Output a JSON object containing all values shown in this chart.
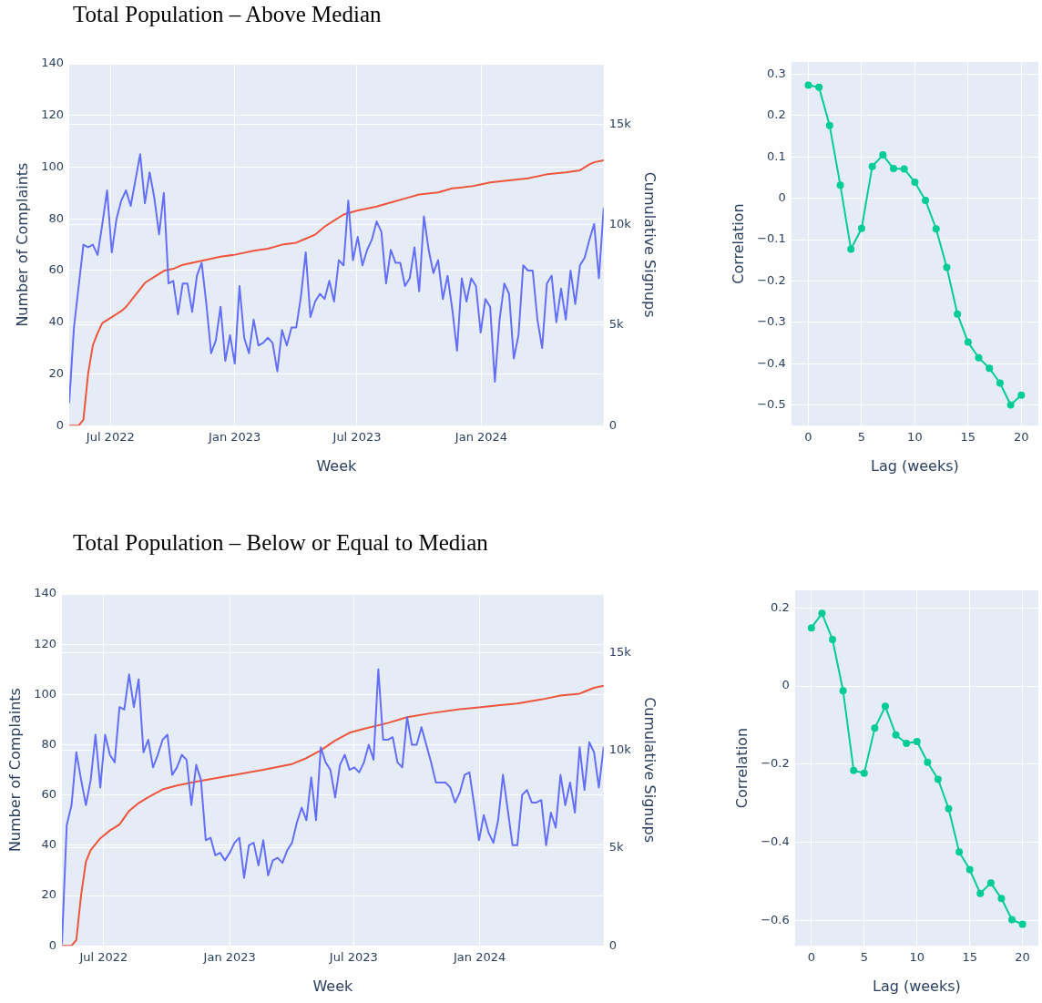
{
  "chart_data": [
    {
      "type": "line",
      "title": "Total Population – Above Median",
      "xlabel": "Week",
      "ylabel": "Number of Complaints",
      "y2label": "Cumulative Signups",
      "grid": true,
      "x": [
        "2022-05-01",
        "2022-05-08",
        "2022-05-15",
        "2022-05-22",
        "2022-05-29",
        "2022-06-05",
        "2022-06-12",
        "2022-06-19",
        "2022-06-26",
        "2022-07-03",
        "2022-07-10",
        "2022-07-17",
        "2022-07-24",
        "2022-07-31",
        "2022-08-07",
        "2022-08-14",
        "2022-08-21",
        "2022-08-28",
        "2022-09-04",
        "2022-09-11",
        "2022-09-18",
        "2022-09-25",
        "2022-10-02",
        "2022-10-09",
        "2022-10-16",
        "2022-10-23",
        "2022-10-30",
        "2022-11-06",
        "2022-11-13",
        "2022-11-20",
        "2022-11-27",
        "2022-12-04",
        "2022-12-11",
        "2022-12-18",
        "2022-12-25",
        "2023-01-01",
        "2023-01-08",
        "2023-01-15",
        "2023-01-22",
        "2023-01-29",
        "2023-02-05",
        "2023-02-12",
        "2023-02-19",
        "2023-02-26",
        "2023-03-05",
        "2023-03-12",
        "2023-03-19",
        "2023-03-26",
        "2023-04-02",
        "2023-04-09",
        "2023-04-16",
        "2023-04-23",
        "2023-04-30",
        "2023-05-07",
        "2023-05-14",
        "2023-05-21",
        "2023-05-28",
        "2023-06-04",
        "2023-06-11",
        "2023-06-18",
        "2023-06-25",
        "2023-07-02",
        "2023-07-09",
        "2023-07-16",
        "2023-07-23",
        "2023-07-30",
        "2023-08-06",
        "2023-08-13",
        "2023-08-20",
        "2023-08-27",
        "2023-09-03",
        "2023-09-10",
        "2023-09-17",
        "2023-09-24",
        "2023-10-01",
        "2023-10-08",
        "2023-10-15",
        "2023-10-22",
        "2023-10-29",
        "2023-11-05",
        "2023-11-12",
        "2023-11-19",
        "2023-11-26",
        "2023-12-03",
        "2023-12-10",
        "2023-12-17",
        "2023-12-24",
        "2023-12-31",
        "2024-01-07",
        "2024-01-14",
        "2024-01-21",
        "2024-01-28",
        "2024-02-04",
        "2024-02-11",
        "2024-02-18",
        "2024-02-25",
        "2024-03-03",
        "2024-03-10",
        "2024-03-17",
        "2024-03-24",
        "2024-03-31",
        "2024-04-07",
        "2024-04-14",
        "2024-04-21",
        "2024-04-28",
        "2024-05-05",
        "2024-05-12",
        "2024-05-19",
        "2024-05-26",
        "2024-06-02",
        "2024-06-09",
        "2024-06-16",
        "2024-06-23",
        "2024-06-30"
      ],
      "xlim": [
        "2022-05-01",
        "2024-06-30"
      ],
      "xticks": [
        {
          "value": "2022-07-01",
          "label": "Jul 2022"
        },
        {
          "value": "2023-01-01",
          "label": "Jan 2023"
        },
        {
          "value": "2023-07-01",
          "label": "Jul 2023"
        },
        {
          "value": "2024-01-01",
          "label": "Jan 2024"
        }
      ],
      "ylim": [
        0,
        140
      ],
      "yticks": [
        0,
        20,
        40,
        60,
        80,
        100,
        120,
        140
      ],
      "y2lim": [
        0,
        18000
      ],
      "y2ticks": [
        0,
        {
          "value": 5000,
          "label": "5k"
        },
        {
          "value": 10000,
          "label": "10k"
        },
        {
          "value": 15000,
          "label": "15k"
        }
      ],
      "series": [
        {
          "color": "#636efa",
          "values": [
            9,
            38,
            54,
            70,
            69,
            70,
            66,
            78,
            91,
            67,
            80,
            87,
            91,
            85,
            95,
            105,
            86,
            98,
            88,
            74,
            90,
            55,
            56,
            43,
            55,
            55,
            44,
            58,
            63,
            47,
            28,
            33,
            46,
            25,
            35,
            24,
            54,
            34,
            28,
            41,
            31,
            32,
            34,
            32,
            21,
            37,
            31,
            38,
            38,
            50,
            67,
            42,
            48,
            51,
            49,
            56,
            48,
            64,
            62,
            87,
            64,
            73,
            62,
            68,
            72,
            79,
            75,
            55,
            68,
            63,
            63,
            54,
            57,
            69,
            52,
            81,
            68,
            59,
            64,
            49,
            58,
            45,
            29,
            57,
            48,
            57,
            54,
            36,
            49,
            46,
            17,
            41,
            55,
            51,
            26,
            35,
            62,
            60,
            60,
            41,
            30,
            55,
            58,
            40,
            53,
            41,
            60,
            47,
            62,
            65,
            72,
            78,
            57,
            84
          ]
        },
        {
          "color": "#ef553b",
          "axis": "y2",
          "x": [
            "2022-05-01",
            "2022-05-15",
            "2022-05-22",
            "2022-05-29",
            "2022-06-05",
            "2022-06-12",
            "2022-06-19",
            "2022-07-03",
            "2022-07-17",
            "2022-07-24",
            "2022-08-07",
            "2022-08-21",
            "2022-09-04",
            "2022-09-18",
            "2022-10-02",
            "2022-10-16",
            "2022-11-13",
            "2022-12-11",
            "2023-01-01",
            "2023-01-29",
            "2023-02-19",
            "2023-03-12",
            "2023-04-02",
            "2023-04-16",
            "2023-04-30",
            "2023-05-14",
            "2023-05-28",
            "2023-06-11",
            "2023-07-02",
            "2023-07-30",
            "2023-08-20",
            "2023-09-10",
            "2023-10-01",
            "2023-10-29",
            "2023-11-19",
            "2023-12-17",
            "2023-12-31",
            "2024-01-14",
            "2024-02-11",
            "2024-03-10",
            "2024-04-07",
            "2024-05-05",
            "2024-05-26",
            "2024-06-09",
            "2024-06-16",
            "2024-06-30"
          ],
          "values": [
            0,
            0,
            300,
            2600,
            4000,
            4600,
            5100,
            5400,
            5700,
            5900,
            6500,
            7100,
            7400,
            7700,
            7800,
            8000,
            8200,
            8400,
            8500,
            8700,
            8800,
            9000,
            9100,
            9300,
            9500,
            9900,
            10200,
            10500,
            10700,
            10900,
            11100,
            11300,
            11500,
            11600,
            11800,
            11900,
            12000,
            12100,
            12200,
            12300,
            12500,
            12600,
            12700,
            13000,
            13100,
            13200
          ]
        }
      ]
    },
    {
      "type": "line",
      "xlabel": "Lag (weeks)",
      "ylabel": "Correlation",
      "grid": true,
      "marker": "circle",
      "x": [
        0,
        1,
        2,
        3,
        4,
        5,
        6,
        7,
        8,
        9,
        10,
        11,
        12,
        13,
        14,
        15,
        16,
        17,
        18,
        19,
        20
      ],
      "xlim": [
        -1.6,
        21.6
      ],
      "xticks": [
        0,
        5,
        10,
        15,
        20
      ],
      "ylim": [
        -0.55,
        0.33
      ],
      "yticks": [
        {
          "value": -0.5,
          "label": "−0.5"
        },
        {
          "value": -0.4,
          "label": "−0.4"
        },
        {
          "value": -0.3,
          "label": "−0.3"
        },
        {
          "value": -0.2,
          "label": "−0.2"
        },
        {
          "value": -0.1,
          "label": "−0.1"
        },
        0,
        0.1,
        0.2,
        0.3
      ],
      "series": [
        {
          "color": "#00cc96",
          "values": [
            0.274,
            0.269,
            0.176,
            0.032,
            -0.123,
            -0.073,
            0.077,
            0.105,
            0.072,
            0.071,
            0.039,
            -0.005,
            -0.074,
            -0.167,
            -0.28,
            -0.348,
            -0.386,
            -0.411,
            -0.447,
            -0.5,
            -0.476
          ]
        }
      ]
    },
    {
      "type": "line",
      "title": "Total Population – Below or Equal to Median",
      "xlabel": "Week",
      "ylabel": "Number of Complaints",
      "y2label": "Cumulative Signups",
      "grid": true,
      "x": [
        "2022-05-01",
        "2022-05-08",
        "2022-05-15",
        "2022-05-22",
        "2022-05-29",
        "2022-06-05",
        "2022-06-12",
        "2022-06-19",
        "2022-06-26",
        "2022-07-03",
        "2022-07-10",
        "2022-07-17",
        "2022-07-24",
        "2022-07-31",
        "2022-08-07",
        "2022-08-14",
        "2022-08-21",
        "2022-08-28",
        "2022-09-04",
        "2022-09-11",
        "2022-09-18",
        "2022-09-25",
        "2022-10-02",
        "2022-10-09",
        "2022-10-16",
        "2022-10-23",
        "2022-10-30",
        "2022-11-06",
        "2022-11-13",
        "2022-11-20",
        "2022-11-27",
        "2022-12-04",
        "2022-12-11",
        "2022-12-18",
        "2022-12-25",
        "2023-01-01",
        "2023-01-08",
        "2023-01-15",
        "2023-01-22",
        "2023-01-29",
        "2023-02-05",
        "2023-02-12",
        "2023-02-19",
        "2023-02-26",
        "2023-03-05",
        "2023-03-12",
        "2023-03-19",
        "2023-03-26",
        "2023-04-02",
        "2023-04-09",
        "2023-04-16",
        "2023-04-23",
        "2023-04-30",
        "2023-05-07",
        "2023-05-14",
        "2023-05-21",
        "2023-05-28",
        "2023-06-04",
        "2023-06-11",
        "2023-06-18",
        "2023-06-25",
        "2023-07-02",
        "2023-07-09",
        "2023-07-16",
        "2023-07-23",
        "2023-07-30",
        "2023-08-06",
        "2023-08-13",
        "2023-08-20",
        "2023-08-27",
        "2023-09-03",
        "2023-09-10",
        "2023-09-17",
        "2023-09-24",
        "2023-10-01",
        "2023-10-08",
        "2023-10-15",
        "2023-10-22",
        "2023-10-29",
        "2023-11-05",
        "2023-11-12",
        "2023-11-19",
        "2023-11-26",
        "2023-12-03",
        "2023-12-10",
        "2023-12-17",
        "2023-12-24",
        "2023-12-31",
        "2024-01-07",
        "2024-01-14",
        "2024-01-21",
        "2024-01-28",
        "2024-02-04",
        "2024-02-11",
        "2024-02-18",
        "2024-02-25",
        "2024-03-03",
        "2024-03-10",
        "2024-03-17",
        "2024-03-24",
        "2024-03-31",
        "2024-04-07",
        "2024-04-14",
        "2024-04-21",
        "2024-04-28",
        "2024-05-05",
        "2024-05-12",
        "2024-05-19",
        "2024-05-26",
        "2024-06-02",
        "2024-06-09",
        "2024-06-16",
        "2024-06-23",
        "2024-06-30"
      ],
      "xlim": [
        "2022-05-01",
        "2024-06-30"
      ],
      "xticks": [
        {
          "value": "2022-07-01",
          "label": "Jul 2022"
        },
        {
          "value": "2023-01-01",
          "label": "Jan 2023"
        },
        {
          "value": "2023-07-01",
          "label": "Jul 2023"
        },
        {
          "value": "2024-01-01",
          "label": "Jan 2024"
        }
      ],
      "ylim": [
        0,
        140
      ],
      "yticks": [
        0,
        20,
        40,
        60,
        80,
        100,
        120,
        140
      ],
      "y2lim": [
        0,
        18000
      ],
      "y2ticks": [
        0,
        {
          "value": 5000,
          "label": "5k"
        },
        {
          "value": 10000,
          "label": "10k"
        },
        {
          "value": 15000,
          "label": "15k"
        }
      ],
      "series": [
        {
          "color": "#636efa",
          "values": [
            1,
            48,
            56,
            77,
            66,
            56,
            66,
            84,
            63,
            84,
            76,
            73,
            95,
            94,
            108,
            95,
            106,
            77,
            82,
            71,
            76,
            82,
            84,
            68,
            71,
            76,
            74,
            56,
            72,
            66,
            42,
            43,
            36,
            37,
            34,
            37,
            41,
            43,
            27,
            40,
            41,
            32,
            42,
            28,
            34,
            35,
            33,
            38,
            41,
            49,
            55,
            50,
            67,
            50,
            79,
            73,
            70,
            59,
            72,
            76,
            70,
            71,
            69,
            73,
            80,
            74,
            110,
            82,
            82,
            83,
            73,
            71,
            91,
            80,
            80,
            87,
            80,
            73,
            65,
            65,
            65,
            63,
            57,
            61,
            68,
            69,
            56,
            42,
            52,
            45,
            41,
            50,
            68,
            54,
            40,
            40,
            60,
            62,
            57,
            57,
            58,
            40,
            53,
            47,
            68,
            56,
            65,
            53,
            79,
            62,
            81,
            77,
            63,
            79
          ]
        },
        {
          "color": "#ef553b",
          "axis": "y2",
          "x": [
            "2022-05-01",
            "2022-05-15",
            "2022-05-22",
            "2022-05-29",
            "2022-06-05",
            "2022-06-12",
            "2022-06-26",
            "2022-07-10",
            "2022-07-24",
            "2022-08-07",
            "2022-08-21",
            "2022-09-04",
            "2022-09-25",
            "2022-10-16",
            "2022-11-13",
            "2023-01-01",
            "2023-02-19",
            "2023-04-02",
            "2023-04-23",
            "2023-05-14",
            "2023-06-04",
            "2023-06-25",
            "2023-07-16",
            "2023-08-20",
            "2023-09-17",
            "2023-10-22",
            "2023-12-03",
            "2023-12-31",
            "2024-01-28",
            "2024-02-25",
            "2024-03-31",
            "2024-04-28",
            "2024-05-26",
            "2024-06-02",
            "2024-06-16",
            "2024-06-30"
          ],
          "values": [
            0,
            0,
            300,
            2600,
            4300,
            4900,
            5500,
            5900,
            6200,
            6900,
            7300,
            7600,
            8000,
            8200,
            8400,
            8700,
            9000,
            9300,
            9600,
            10000,
            10500,
            10900,
            11100,
            11400,
            11700,
            11900,
            12100,
            12200,
            12300,
            12400,
            12600,
            12800,
            12900,
            13000,
            13200,
            13300
          ]
        }
      ]
    },
    {
      "type": "line",
      "xlabel": "Lag (weeks)",
      "ylabel": "Correlation",
      "grid": true,
      "marker": "circle",
      "x": [
        0,
        1,
        2,
        3,
        4,
        5,
        6,
        7,
        8,
        9,
        10,
        11,
        12,
        13,
        14,
        15,
        16,
        17,
        18,
        19,
        20
      ],
      "xlim": [
        -1.56,
        21.5
      ],
      "xticks": [
        0,
        5,
        10,
        15,
        20
      ],
      "ylim": [
        -0.665,
        0.245
      ],
      "yticks": [
        {
          "value": -0.6,
          "label": "−0.6"
        },
        {
          "value": -0.4,
          "label": "−0.4"
        },
        {
          "value": -0.2,
          "label": "−0.2"
        },
        0,
        0.2
      ],
      "series": [
        {
          "color": "#00cc96",
          "values": [
            0.149,
            0.186,
            0.119,
            -0.012,
            -0.216,
            -0.223,
            -0.108,
            -0.052,
            -0.125,
            -0.147,
            -0.142,
            -0.195,
            -0.239,
            -0.314,
            -0.425,
            -0.47,
            -0.531,
            -0.504,
            -0.544,
            -0.598,
            -0.61
          ]
        }
      ]
    }
  ]
}
